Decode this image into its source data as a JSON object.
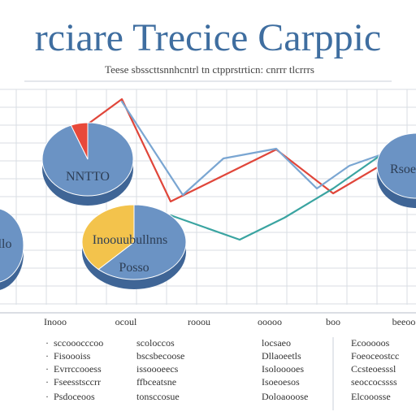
{
  "title": "rciare Trecice Carppic",
  "subtitle": "Teese sbsscttsnnhcntrl tn ctpprstrticn: cnrrr tlcrrrs",
  "colors": {
    "background": "#ffffff",
    "title": "#3f6ea0",
    "grid": "#d9dde3",
    "pie_blue": "#6b93c4",
    "pie_blue_dark": "#3f6596",
    "pie_red": "#e8493a",
    "pie_yellow": "#f3c34c",
    "line_red": "#e0463a",
    "line_blue": "#7aa6d2",
    "line_teal": "#3aa4a1"
  },
  "chart_data": [
    {
      "type": "line",
      "title": "",
      "xlabel": "",
      "ylabel": "",
      "x_ticks": [
        "Inooo",
        "ocoul",
        "rooou",
        "ooooo",
        "boo",
        "beeoo"
      ],
      "grid": true,
      "series": [
        {
          "color": "line_red",
          "values": [
            [
              105,
              155
            ],
            [
              150,
              122
            ],
            [
              210,
              248
            ],
            [
              340,
              184
            ],
            [
              410,
              238
            ],
            [
              512,
              178
            ]
          ]
        },
        {
          "color": "line_blue",
          "values": [
            [
              150,
              125
            ],
            [
              225,
              240
            ],
            [
              275,
              195
            ],
            [
              340,
              183
            ],
            [
              390,
              232
            ],
            [
              430,
              204
            ],
            [
              470,
              190
            ],
            [
              512,
              180
            ]
          ]
        },
        {
          "color": "line_teal",
          "values": [
            [
              210,
              265
            ],
            [
              295,
              295
            ],
            [
              350,
              268
            ],
            [
              410,
              232
            ],
            [
              470,
              190
            ]
          ]
        }
      ]
    },
    {
      "type": "pie",
      "label": "NNTTO",
      "slices": [
        {
          "color": "pie_blue",
          "value": 0.94
        },
        {
          "color": "pie_red",
          "value": 0.06
        }
      ]
    },
    {
      "type": "pie",
      "label": "llo",
      "slices": [
        {
          "color": "pie_blue",
          "value": 1.0
        }
      ]
    },
    {
      "type": "pie",
      "label": "Inoouubullnns",
      "label2": "Posso",
      "slices": [
        {
          "color": "pie_blue",
          "value": 0.62
        },
        {
          "color": "pie_yellow",
          "value": 0.38
        }
      ]
    },
    {
      "type": "pie",
      "label": "Rsoeo",
      "slices": [
        {
          "color": "pie_blue",
          "value": 1.0
        }
      ]
    }
  ],
  "legend": {
    "columns": [
      {
        "items": [
          {
            "marker": "·",
            "text": "sccooocccoo"
          },
          {
            "marker": "·",
            "text": "Fisoooiss"
          },
          {
            "marker": "·",
            "text": "Evrrccooess"
          },
          {
            "marker": "·",
            "text": "Fseesstsccrr"
          },
          {
            "marker": "·",
            "text": "Psdoceoos"
          }
        ]
      },
      {
        "items": [
          {
            "marker": "",
            "text": "scoloccos"
          },
          {
            "marker": "",
            "text": "bscsbecoose"
          },
          {
            "marker": "",
            "text": "issoooeecs"
          },
          {
            "marker": "",
            "text": "ffbceatsne"
          },
          {
            "marker": "",
            "text": "tonsccosue"
          }
        ]
      },
      {
        "items": [
          {
            "marker": "",
            "text": "locsaeo"
          },
          {
            "marker": "",
            "text": "Dllaoeetls"
          },
          {
            "marker": "",
            "text": "Isolooooes"
          },
          {
            "marker": "",
            "text": "Isoeoesos"
          },
          {
            "marker": "",
            "text": "Doloaooose"
          }
        ]
      },
      {
        "items": [
          {
            "marker": "",
            "text": "Ecooooos"
          },
          {
            "marker": "",
            "text": "Foeoceostcc"
          },
          {
            "marker": "",
            "text": "Ccsteoesssl"
          },
          {
            "marker": "",
            "text": "seoccocssss"
          },
          {
            "marker": "",
            "text": "Elcooosse"
          }
        ]
      }
    ]
  }
}
